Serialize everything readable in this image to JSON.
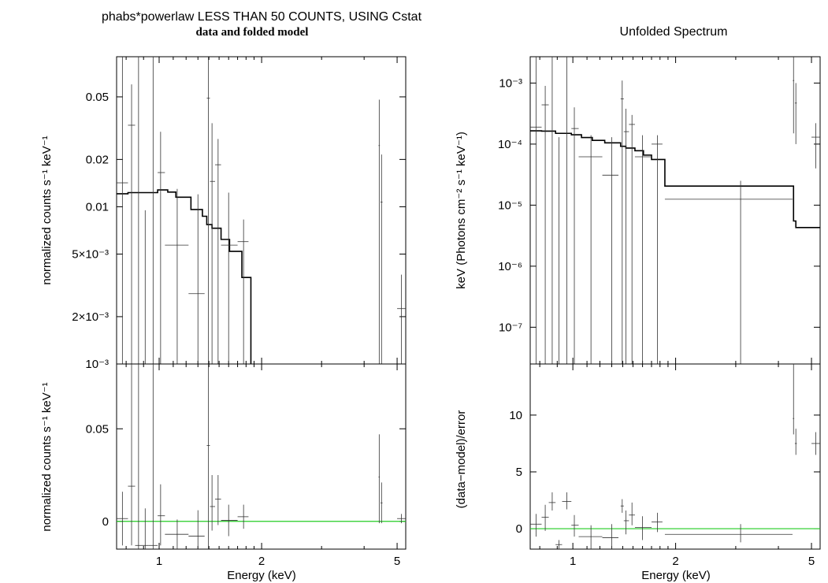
{
  "colors": {
    "model_line": "#000000",
    "data_points": "#333333",
    "zero_line": "#22cc22"
  },
  "chart_data": [
    {
      "id": "left_top",
      "type": "scatter",
      "title": "phabs*powerlaw LESS THAN 50 COUNTS, USING Cstat",
      "subtitle": "data and folded model",
      "xlabel": "",
      "ylabel": "normalized counts s⁻¹ keV⁻¹",
      "xscale": "log",
      "yscale": "log",
      "xlim": [
        0.75,
        5.3
      ],
      "ylim": [
        0.001,
        0.09
      ],
      "yticks": [
        {
          "value": 0.05,
          "label": "0.05"
        },
        {
          "value": 0.02,
          "label": "0.02"
        },
        {
          "value": 0.01,
          "label": "0.01"
        },
        {
          "value": 0.005,
          "label": "5×10⁻³"
        },
        {
          "value": 0.002,
          "label": "2×10⁻³"
        },
        {
          "value": 0.001,
          "label": "10⁻³"
        }
      ],
      "points": [
        {
          "x": 0.78,
          "xl": 0.75,
          "xh": 0.81,
          "y": 0.0142,
          "yl": 0.001,
          "yh": 0.09
        },
        {
          "x": 0.83,
          "xl": 0.81,
          "xh": 0.85,
          "y": 0.033,
          "yl": 0.001,
          "yh": 0.06
        },
        {
          "x": 0.87,
          "xl": 0.85,
          "xh": 0.89,
          "y": 0.0009,
          "yl": 0.001,
          "yh": 0.09
        },
        {
          "x": 0.91,
          "xl": 0.89,
          "xh": 0.93,
          "y": 0.0009,
          "yl": 0.001,
          "yh": 0.0095
        },
        {
          "x": 0.96,
          "xl": 0.93,
          "xh": 0.99,
          "y": 0.0009,
          "yl": 0.001,
          "yh": 0.09
        },
        {
          "x": 1.01,
          "xl": 0.99,
          "xh": 1.04,
          "y": 0.0165,
          "yl": 0.001,
          "yh": 0.03
        },
        {
          "x": 1.13,
          "xl": 1.04,
          "xh": 1.22,
          "y": 0.0057,
          "yl": 0.001,
          "yh": 0.013
        },
        {
          "x": 1.3,
          "xl": 1.22,
          "xh": 1.36,
          "y": 0.0028,
          "yl": 0.001,
          "yh": 0.012
        },
        {
          "x": 1.395,
          "xl": 1.38,
          "xh": 1.41,
          "y": 0.049,
          "yl": 0.001,
          "yh": 0.09
        },
        {
          "x": 1.43,
          "xl": 1.41,
          "xh": 1.46,
          "y": 0.0145,
          "yl": 0.001,
          "yh": 0.034
        },
        {
          "x": 1.49,
          "xl": 1.46,
          "xh": 1.52,
          "y": 0.0185,
          "yl": 0.001,
          "yh": 0.027
        },
        {
          "x": 1.6,
          "xl": 1.52,
          "xh": 1.7,
          "y": 0.0057,
          "yl": 0.001,
          "yh": 0.0123
        },
        {
          "x": 1.77,
          "xl": 1.7,
          "xh": 1.83,
          "y": 0.006,
          "yl": 0.001,
          "yh": 0.0083
        },
        {
          "x": 4.43,
          "xl": 4.41,
          "xh": 4.45,
          "y": 0.0245,
          "yl": 0.001,
          "yh": 0.048
        },
        {
          "x": 4.5,
          "xl": 4.47,
          "xh": 4.53,
          "y": 0.0107,
          "yl": 0.001,
          "yh": 0.0215
        },
        {
          "x": 5.15,
          "xl": 5.0,
          "xh": 5.3,
          "y": 0.00225,
          "yl": 0.001,
          "yh": 0.0037
        }
      ],
      "model_steps": [
        [
          0.75,
          0.0121
        ],
        [
          0.81,
          0.0123
        ],
        [
          0.99,
          0.0128
        ],
        [
          1.06,
          0.0124
        ],
        [
          1.12,
          0.0115
        ],
        [
          1.24,
          0.0096
        ],
        [
          1.34,
          0.0087
        ],
        [
          1.38,
          0.0077
        ],
        [
          1.43,
          0.0073
        ],
        [
          1.52,
          0.0062
        ],
        [
          1.61,
          0.0052
        ],
        [
          1.7,
          0.0052
        ],
        [
          1.75,
          0.00355
        ],
        [
          1.83,
          0.00355
        ],
        [
          1.86,
          0.0009
        ]
      ]
    },
    {
      "id": "left_bottom",
      "type": "scatter",
      "xlabel": "Energy (keV)",
      "ylabel": "normalized counts s⁻¹ keV⁻¹",
      "xscale": "log",
      "yscale": "linear",
      "xlim": [
        0.75,
        5.3
      ],
      "ylim": [
        -0.015,
        0.085
      ],
      "xticks": [
        {
          "value": 1,
          "label": "1"
        },
        {
          "value": 2,
          "label": "2"
        },
        {
          "value": 5,
          "label": "5"
        }
      ],
      "yticks": [
        {
          "value": 0.05,
          "label": "0.05"
        },
        {
          "value": 0,
          "label": "0"
        }
      ],
      "points": [
        {
          "x": 0.78,
          "xl": 0.75,
          "xh": 0.81,
          "y": 0.0015,
          "yl": -0.013,
          "yh": 0.016
        },
        {
          "x": 0.83,
          "xl": 0.81,
          "xh": 0.85,
          "y": 0.019,
          "yl": -0.013,
          "yh": 0.085
        },
        {
          "x": 0.87,
          "xl": 0.85,
          "xh": 0.89,
          "y": -0.013,
          "yl": -0.015,
          "yh": 0.085
        },
        {
          "x": 0.91,
          "xl": 0.89,
          "xh": 0.93,
          "y": -0.013,
          "yl": -0.015,
          "yh": 0.007
        },
        {
          "x": 0.96,
          "xl": 0.93,
          "xh": 0.99,
          "y": -0.013,
          "yl": -0.015,
          "yh": 0.085
        },
        {
          "x": 1.01,
          "xl": 0.99,
          "xh": 1.04,
          "y": 0.003,
          "yl": -0.013,
          "yh": 0.02
        },
        {
          "x": 1.13,
          "xl": 1.04,
          "xh": 1.22,
          "y": -0.007,
          "yl": -0.015,
          "yh": 0.001
        },
        {
          "x": 1.3,
          "xl": 1.22,
          "xh": 1.36,
          "y": -0.008,
          "yl": -0.015,
          "yh": 0.006
        },
        {
          "x": 1.395,
          "xl": 1.38,
          "xh": 1.41,
          "y": 0.041,
          "yl": -0.015,
          "yh": 0.085
        },
        {
          "x": 1.43,
          "xl": 1.41,
          "xh": 1.46,
          "y": 0.008,
          "yl": -0.005,
          "yh": 0.025
        },
        {
          "x": 1.49,
          "xl": 1.46,
          "xh": 1.52,
          "y": 0.012,
          "yl": -0.002,
          "yh": 0.025
        },
        {
          "x": 1.6,
          "xl": 1.52,
          "xh": 1.7,
          "y": 0.0005,
          "yl": -0.008,
          "yh": 0.009
        },
        {
          "x": 1.77,
          "xl": 1.7,
          "xh": 1.83,
          "y": 0.0025,
          "yl": -0.004,
          "yh": 0.009
        },
        {
          "x": 4.43,
          "xl": 4.41,
          "xh": 4.45,
          "y": 0.024,
          "yl": -0.001,
          "yh": 0.047
        },
        {
          "x": 4.5,
          "xl": 4.47,
          "xh": 4.53,
          "y": 0.01,
          "yl": -0.001,
          "yh": 0.021
        },
        {
          "x": 5.15,
          "xl": 5.0,
          "xh": 5.3,
          "y": 0.0015,
          "yl": -0.001,
          "yh": 0.004
        }
      ],
      "zero_line": 0
    },
    {
      "id": "right_top",
      "type": "scatter",
      "title": "Unfolded Spectrum",
      "xlabel": "",
      "ylabel": "keV (Photons cm⁻² s⁻¹ keV⁻¹)",
      "xscale": "log",
      "yscale": "log",
      "xlim": [
        0.75,
        5.3
      ],
      "ylim": [
        2.5e-08,
        0.0027
      ],
      "yticks": [
        {
          "value": 0.001,
          "label": "10⁻³"
        },
        {
          "value": 0.0001,
          "label": "10⁻⁴"
        },
        {
          "value": 1e-05,
          "label": "10⁻⁵"
        },
        {
          "value": 1e-06,
          "label": "10⁻⁶"
        },
        {
          "value": 1e-07,
          "label": "10⁻⁷"
        }
      ],
      "points": [
        {
          "x": 0.78,
          "xl": 0.75,
          "xh": 0.81,
          "y": 0.00019,
          "yl": 2.5e-08,
          "yh": 0.0027
        },
        {
          "x": 0.83,
          "xl": 0.81,
          "xh": 0.85,
          "y": 0.00044,
          "yl": 2.5e-08,
          "yh": 0.0009
        },
        {
          "x": 0.87,
          "xl": 0.85,
          "xh": 0.89,
          "y": 2e-08,
          "yl": 2.5e-08,
          "yh": 0.0027
        },
        {
          "x": 0.91,
          "xl": 0.89,
          "xh": 0.93,
          "y": 2e-08,
          "yl": 2.5e-08,
          "yh": 0.00013
        },
        {
          "x": 0.96,
          "xl": 0.93,
          "xh": 0.99,
          "y": 2e-08,
          "yl": 2.5e-08,
          "yh": 0.0027
        },
        {
          "x": 1.01,
          "xl": 0.99,
          "xh": 1.04,
          "y": 0.00018,
          "yl": 2.5e-08,
          "yh": 0.0004
        },
        {
          "x": 1.13,
          "xl": 1.04,
          "xh": 1.22,
          "y": 6.2e-05,
          "yl": 2.5e-08,
          "yh": 0.00014
        },
        {
          "x": 1.3,
          "xl": 1.22,
          "xh": 1.36,
          "y": 3.1e-05,
          "yl": 2.5e-08,
          "yh": 0.00013
        },
        {
          "x": 1.395,
          "xl": 1.38,
          "xh": 1.41,
          "y": 0.00055,
          "yl": 2.5e-08,
          "yh": 0.0011
        },
        {
          "x": 1.43,
          "xl": 1.41,
          "xh": 1.46,
          "y": 0.00016,
          "yl": 2.5e-08,
          "yh": 0.00038
        },
        {
          "x": 1.49,
          "xl": 1.46,
          "xh": 1.52,
          "y": 0.00021,
          "yl": 2.5e-08,
          "yh": 0.0003
        },
        {
          "x": 1.6,
          "xl": 1.52,
          "xh": 1.7,
          "y": 6.2e-05,
          "yl": 2.5e-08,
          "yh": 0.00014
        },
        {
          "x": 1.77,
          "xl": 1.7,
          "xh": 1.83,
          "y": 0.0001,
          "yl": 2.5e-08,
          "yh": 0.00014
        },
        {
          "x": 3.1,
          "xl": 1.86,
          "xh": 4.4,
          "y": 1.25e-05,
          "yl": 2.5e-08,
          "yh": 2.5e-05
        },
        {
          "x": 4.43,
          "xl": 4.41,
          "xh": 4.45,
          "y": 0.0011,
          "yl": 0.00015,
          "yh": 0.0027
        },
        {
          "x": 4.5,
          "xl": 4.47,
          "xh": 4.53,
          "y": 0.00047,
          "yl": 0.0001,
          "yh": 0.001
        },
        {
          "x": 5.15,
          "xl": 5.0,
          "xh": 5.3,
          "y": 0.00013,
          "yl": 4e-05,
          "yh": 0.00022
        }
      ],
      "model_steps": [
        [
          0.75,
          0.000165
        ],
        [
          0.81,
          0.000163
        ],
        [
          0.89,
          0.00015
        ],
        [
          0.99,
          0.000142
        ],
        [
          1.06,
          0.000128
        ],
        [
          1.14,
          0.000115
        ],
        [
          1.24,
          0.000105
        ],
        [
          1.38,
          9.2e-05
        ],
        [
          1.43,
          8.6e-05
        ],
        [
          1.52,
          7.8e-05
        ],
        [
          1.61,
          6.6e-05
        ],
        [
          1.7,
          5.6e-05
        ],
        [
          1.86,
          2.05e-05
        ],
        [
          4.43,
          5.5e-06
        ],
        [
          4.5,
          4.3e-06
        ],
        [
          5.3,
          4.3e-06
        ]
      ]
    },
    {
      "id": "right_bottom",
      "type": "scatter",
      "xlabel": "Energy (keV)",
      "ylabel": "(data−model)/error",
      "xscale": "log",
      "yscale": "linear",
      "xlim": [
        0.75,
        5.3
      ],
      "ylim": [
        -1.8,
        14.5
      ],
      "xticks": [
        {
          "value": 1,
          "label": "1"
        },
        {
          "value": 2,
          "label": "2"
        },
        {
          "value": 5,
          "label": "5"
        }
      ],
      "yticks": [
        {
          "value": 10,
          "label": "10"
        },
        {
          "value": 5,
          "label": "5"
        },
        {
          "value": 0,
          "label": "0"
        }
      ],
      "points": [
        {
          "x": 0.78,
          "xl": 0.75,
          "xh": 0.81,
          "y": 0.4,
          "yl": -0.7,
          "yh": 1.3
        },
        {
          "x": 0.83,
          "xl": 0.81,
          "xh": 0.85,
          "y": 1.0,
          "yl": -0.2,
          "yh": 2.1
        },
        {
          "x": 0.87,
          "xl": 0.85,
          "xh": 0.89,
          "y": 2.3,
          "yl": 1.6,
          "yh": 3.2
        },
        {
          "x": 0.91,
          "xl": 0.89,
          "xh": 0.93,
          "y": -1.4,
          "yl": -1.8,
          "yh": -1.0
        },
        {
          "x": 0.96,
          "xl": 0.93,
          "xh": 0.99,
          "y": 2.4,
          "yl": 1.7,
          "yh": 3.2
        },
        {
          "x": 1.01,
          "xl": 0.99,
          "xh": 1.04,
          "y": 0.3,
          "yl": -0.7,
          "yh": 1.2
        },
        {
          "x": 1.13,
          "xl": 1.04,
          "xh": 1.22,
          "y": -0.7,
          "yl": -1.8,
          "yh": 0.3
        },
        {
          "x": 1.3,
          "xl": 1.22,
          "xh": 1.36,
          "y": -0.8,
          "yl": -1.8,
          "yh": 0.4
        },
        {
          "x": 1.395,
          "xl": 1.38,
          "xh": 1.41,
          "y": 2.0,
          "yl": 1.4,
          "yh": 2.6
        },
        {
          "x": 1.43,
          "xl": 1.41,
          "xh": 1.46,
          "y": 0.7,
          "yl": -0.5,
          "yh": 1.6
        },
        {
          "x": 1.49,
          "xl": 1.46,
          "xh": 1.52,
          "y": 1.2,
          "yl": 0.3,
          "yh": 2.3
        },
        {
          "x": 1.6,
          "xl": 1.52,
          "xh": 1.7,
          "y": 0.1,
          "yl": -1.0,
          "yh": 1.1
        },
        {
          "x": 1.77,
          "xl": 1.7,
          "xh": 1.83,
          "y": 0.6,
          "yl": -0.3,
          "yh": 1.4
        },
        {
          "x": 3.1,
          "xl": 1.86,
          "xh": 4.4,
          "y": -0.5,
          "yl": -1.2,
          "yh": 0.4
        },
        {
          "x": 4.43,
          "xl": 4.41,
          "xh": 4.45,
          "y": 9.7,
          "yl": 8.3,
          "yh": 14.5
        },
        {
          "x": 4.5,
          "xl": 4.47,
          "xh": 4.53,
          "y": 7.5,
          "yl": 6.5,
          "yh": 8.8
        },
        {
          "x": 5.15,
          "xl": 5.0,
          "xh": 5.3,
          "y": 7.5,
          "yl": 6.5,
          "yh": 8.5
        }
      ],
      "zero_line": 0
    }
  ]
}
